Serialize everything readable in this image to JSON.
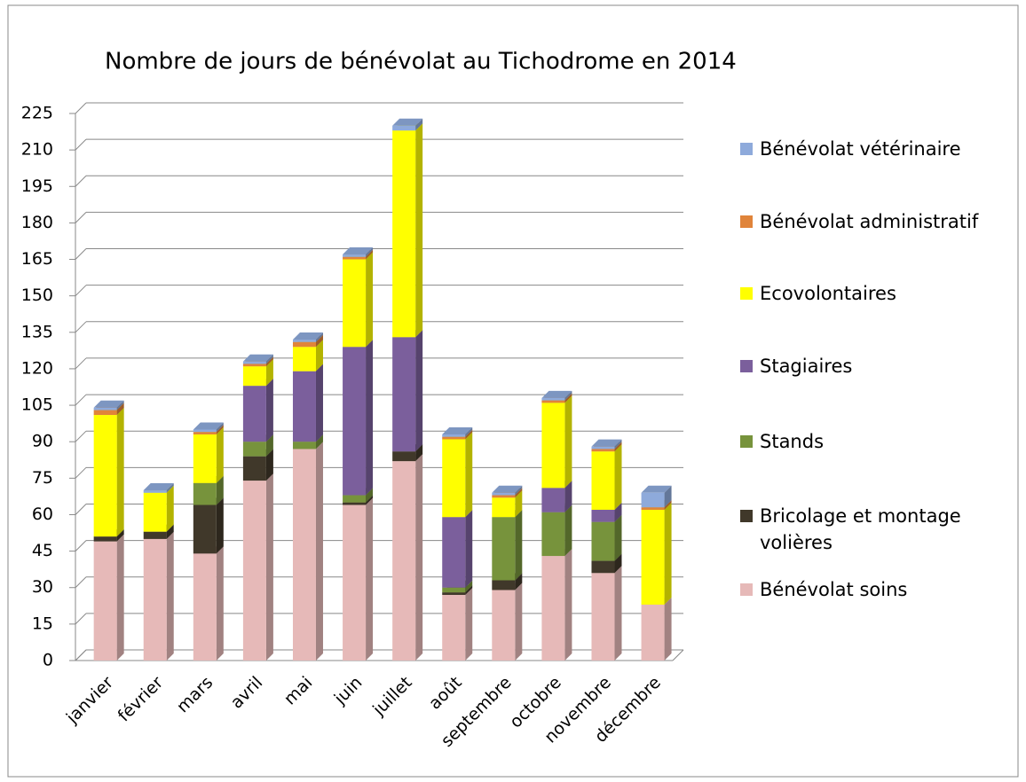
{
  "chart_data": {
    "type": "bar",
    "stacked": true,
    "title": "Nombre de jours de bénévolat au Tichodrome en 2014",
    "categories": [
      "janvier",
      "février",
      "mars",
      "avril",
      "mai",
      "juin",
      "juillet",
      "août",
      "septembre",
      "octobre",
      "novembre",
      "décembre"
    ],
    "series": [
      {
        "name": "Bénévolat soins",
        "color": "#e6b9b8",
        "values": [
          49,
          50,
          44,
          74,
          87,
          64,
          82,
          27,
          29,
          43,
          36,
          23
        ]
      },
      {
        "name": "Bricolage et montage volières",
        "color": "#40382a",
        "values": [
          2,
          3,
          20,
          10,
          0,
          1,
          4,
          1,
          4,
          0,
          5,
          0
        ]
      },
      {
        "name": "Stands",
        "color": "#77933c",
        "values": [
          0,
          0,
          9,
          6,
          3,
          3,
          0,
          2,
          26,
          18,
          16,
          0
        ]
      },
      {
        "name": "Stagiaires",
        "color": "#7b5f9c",
        "values": [
          0,
          0,
          0,
          23,
          29,
          61,
          47,
          29,
          0,
          10,
          5,
          0
        ]
      },
      {
        "name": "Ecovolontaires",
        "color": "#ffff00",
        "values": [
          50,
          16,
          20,
          8,
          10,
          36,
          85,
          32,
          8,
          35,
          24,
          39
        ]
      },
      {
        "name": "Bénévolat administratif",
        "color": "#e0843a",
        "values": [
          2,
          0,
          1,
          1,
          2,
          1,
          0,
          1,
          1,
          1,
          1,
          1
        ]
      },
      {
        "name": "Bénévolat vétérinaire",
        "color": "#8eaadb",
        "values": [
          1,
          1,
          1,
          1,
          1,
          1,
          2,
          1,
          1,
          1,
          1,
          6
        ]
      }
    ],
    "ylim": [
      0,
      225
    ],
    "yticks": [
      0,
      15,
      30,
      45,
      60,
      75,
      90,
      105,
      120,
      135,
      150,
      165,
      180,
      195,
      210,
      225
    ],
    "grid": true,
    "legend": "right"
  }
}
